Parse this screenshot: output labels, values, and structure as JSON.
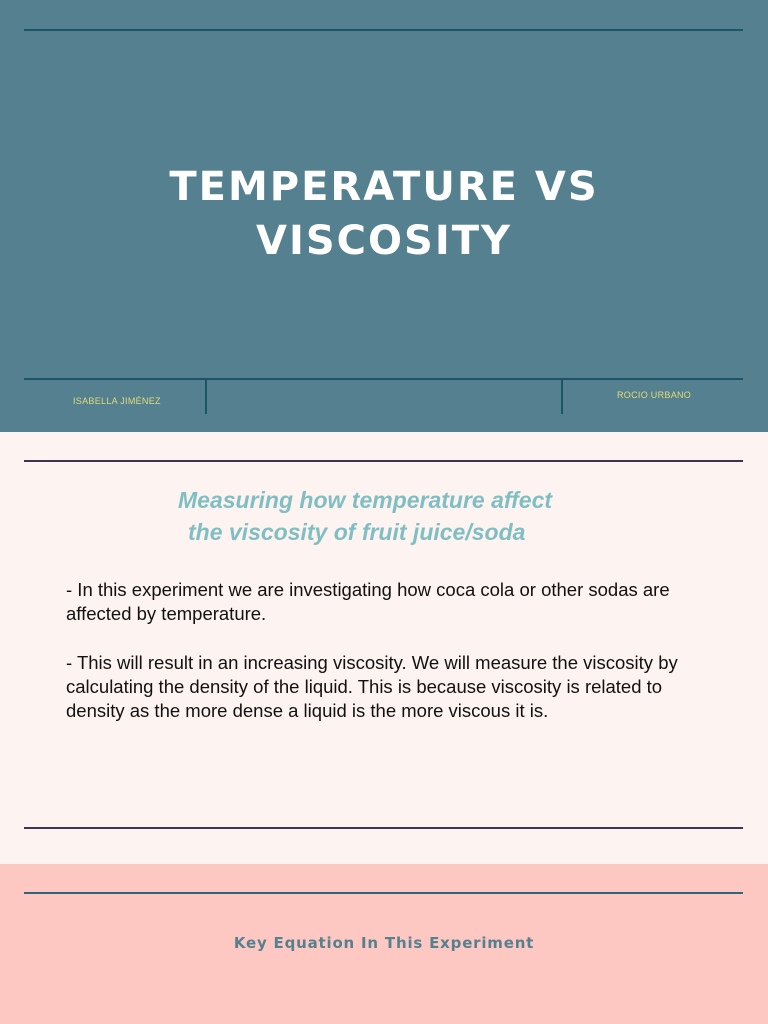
{
  "title_slide": {
    "title_line1": "TEMPERATURE VS",
    "title_line2": "VISCOSITY",
    "author_left": "ISABELLA JIMÉNEZ",
    "author_right": "ROCIO URBANO",
    "colors": {
      "background": "#55808f",
      "rule": "#1d5568",
      "author_text": "#e2dc7a"
    }
  },
  "content_slide": {
    "subtitle_line1": "Measuring how temperature affect",
    "subtitle_line2": "the viscosity of fruit juice/soda",
    "paragraph1": "- In this experiment we are investigating how coca cola or other sodas are affected by temperature.",
    "paragraph2": "- This will result in an increasing viscosity. We will measure the viscosity by calculating the density of the liquid. This is because viscosity is related to density as the more dense a liquid is the more viscous it is.",
    "colors": {
      "background": "#fdf3f0",
      "subtitle": "#7fbfc3",
      "rule": "#3e3457"
    }
  },
  "bottom_slide": {
    "heading": "Key Equation In This Experiment",
    "colors": {
      "background": "#fdc8c1",
      "heading": "#55808f"
    }
  }
}
